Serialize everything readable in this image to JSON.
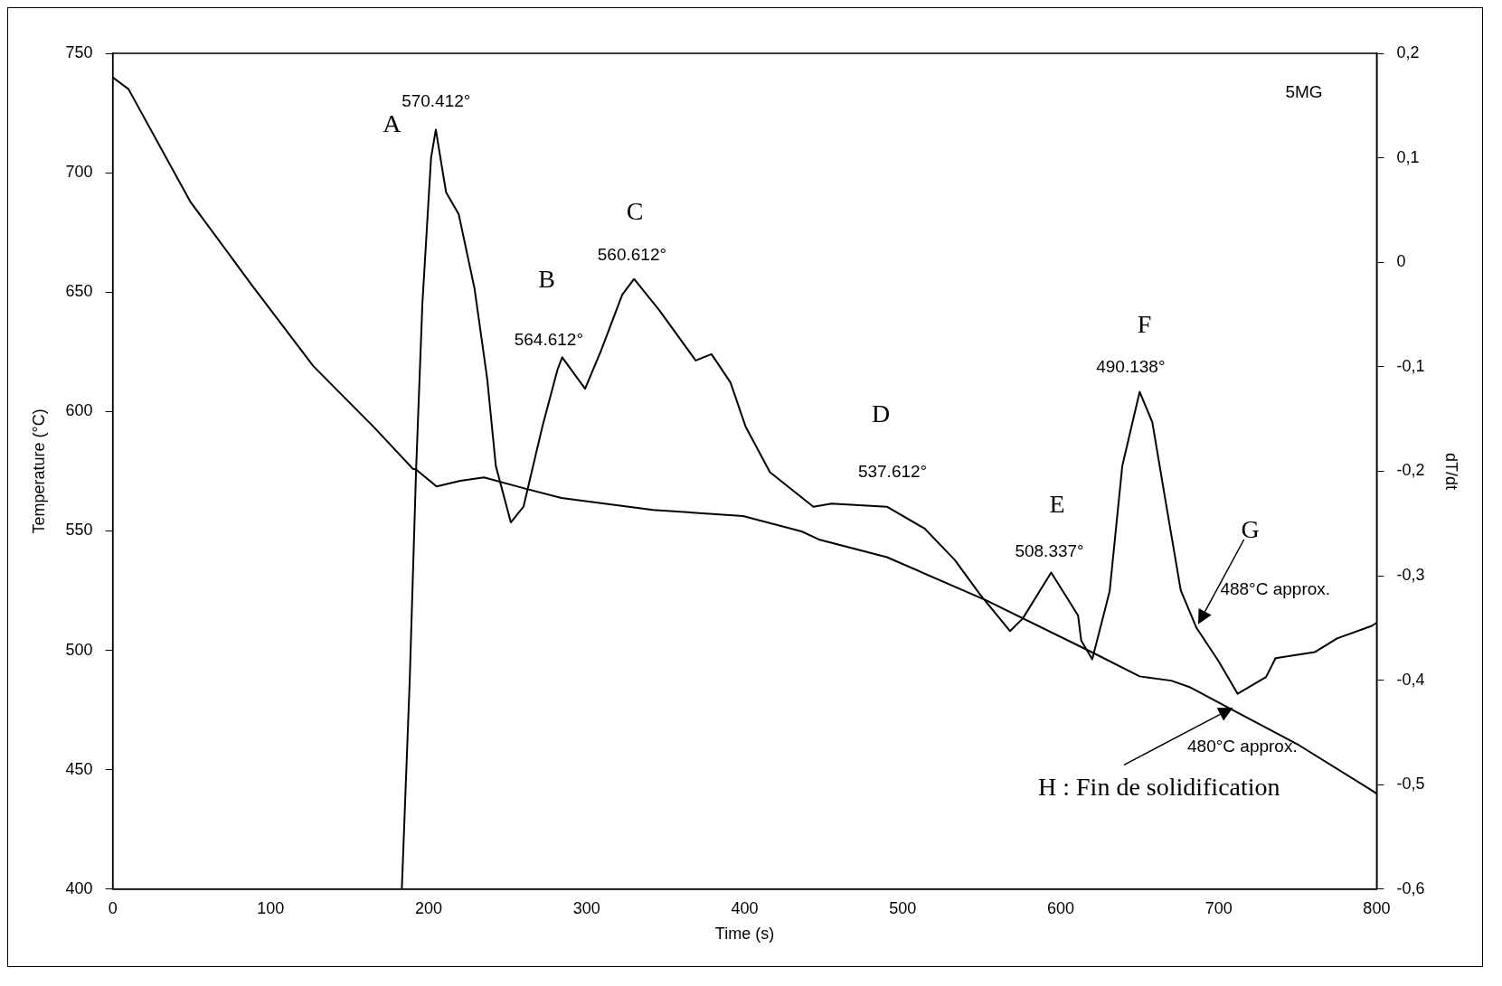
{
  "chart_data": {
    "type": "line",
    "xlabel": "Time (s)",
    "ylabel": "Temperature (°C)",
    "y2label": "dT/dt",
    "xlim": [
      0,
      800
    ],
    "xticks": [
      0,
      100,
      200,
      300,
      400,
      500,
      600,
      700,
      800
    ],
    "ylim": [
      400,
      750
    ],
    "yticks": [
      400,
      450,
      500,
      550,
      600,
      650,
      700,
      750
    ],
    "y2lim": [
      -0.6,
      0.2
    ],
    "y2ticks": [
      {
        "value": -0.6,
        "label": "-0,6"
      },
      {
        "value": -0.5,
        "label": "-0,5"
      },
      {
        "value": -0.4,
        "label": "-0,4"
      },
      {
        "value": -0.3,
        "label": "-0,3"
      },
      {
        "value": -0.2,
        "label": "-0,2"
      },
      {
        "value": -0.1,
        "label": "-0,1"
      },
      {
        "value": 0,
        "label": "0"
      },
      {
        "value": 0.1,
        "label": "0,1"
      },
      {
        "value": 0.2,
        "label": "0,2"
      }
    ],
    "grid": false,
    "legend": false,
    "series": [
      {
        "color": "#000000",
        "x": [
          0,
          10,
          49,
          88,
          127,
          166,
          190,
          192,
          205,
          220,
          235,
          260,
          284,
          342,
          399,
          436,
          447,
          490,
          553,
          621,
          650,
          670,
          682,
          707,
          751,
          797,
          800
        ],
        "values": [
          740,
          735,
          688,
          653,
          619,
          593,
          576,
          575.7,
          568.6,
          571,
          572.4,
          567.9,
          563.8,
          558.8,
          556.2,
          549.8,
          546.4,
          539,
          520.9,
          498.8,
          489.1,
          487.3,
          484.5,
          475.7,
          460.2,
          441.3,
          440
        ]
      },
      {
        "color": "#000000",
        "axis": "y2",
        "x": [
          183,
          188,
          192,
          196,
          201.5,
          204.5,
          211,
          219,
          229,
          237,
          242.5,
          252,
          260,
          272,
          281.5,
          284.5,
          299,
          309,
          322.5,
          330,
          346,
          369,
          379,
          391,
          400.5,
          416,
          443.5,
          455,
          490,
          514,
          533,
          549,
          568,
          576,
          594,
          611,
          613,
          620,
          631,
          639,
          650,
          658,
          666,
          676,
          686,
          700,
          712,
          730,
          736,
          761,
          775,
          797,
          800
        ],
        "values": [
          -0.6,
          -0.4,
          -0.2,
          -0.04,
          0.1,
          0.127,
          0.067,
          0.046,
          -0.025,
          -0.111,
          -0.195,
          -0.249,
          -0.234,
          -0.157,
          -0.103,
          -0.091,
          -0.121,
          -0.085,
          -0.031,
          -0.016,
          -0.046,
          -0.094,
          -0.088,
          -0.115,
          -0.157,
          -0.201,
          -0.234,
          -0.231,
          -0.234,
          -0.255,
          -0.285,
          -0.318,
          -0.353,
          -0.341,
          -0.297,
          -0.338,
          -0.362,
          -0.38,
          -0.315,
          -0.195,
          -0.124,
          -0.153,
          -0.225,
          -0.314,
          -0.35,
          -0.382,
          -0.413,
          -0.397,
          -0.379,
          -0.373,
          -0.36,
          -0.348,
          -0.345
        ]
      }
    ],
    "annotations": [
      "A",
      "570.412°",
      "B",
      "564.612°",
      "C",
      "560.612°",
      "D",
      "537.612°",
      "E",
      "508.337°",
      "F",
      "490.138°",
      "G",
      "488°C approx.",
      "480°C approx.",
      {
        "text": "H : Fin de solidification",
        "x": 709,
        "y": 476
      },
      "5MG"
    ]
  }
}
